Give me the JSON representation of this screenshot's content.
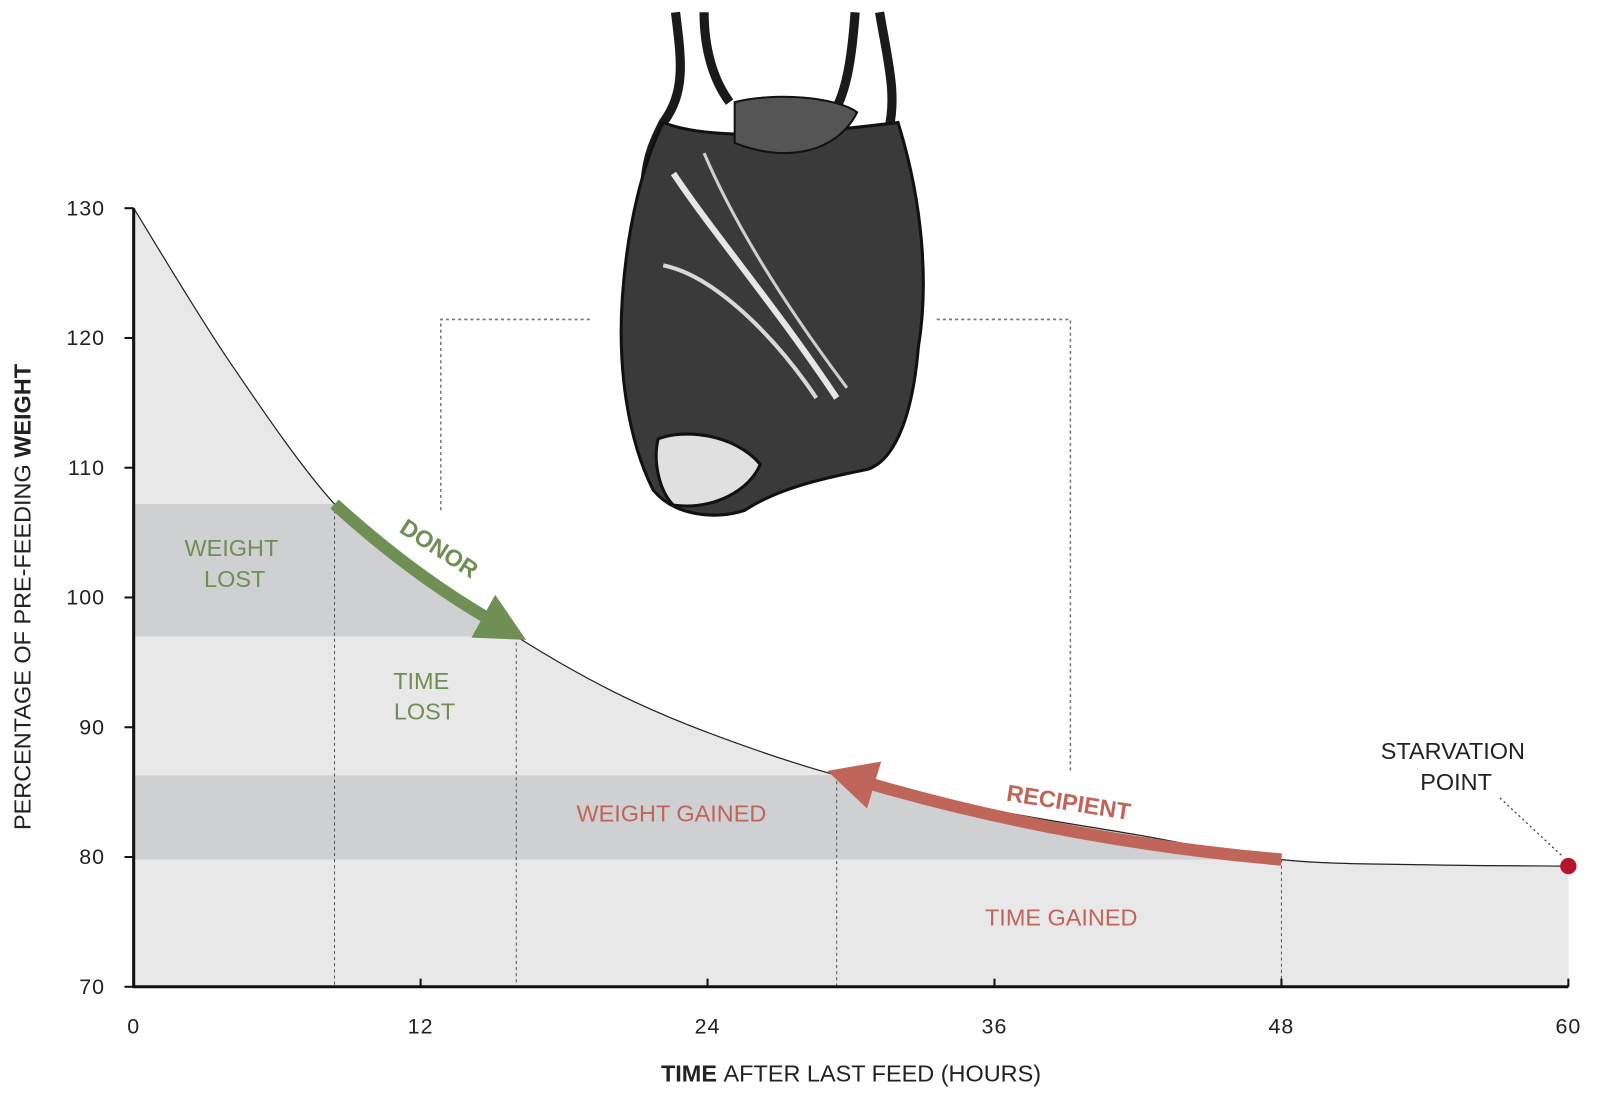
{
  "chart_data": {
    "type": "line",
    "x_label": {
      "emphasis": "TIME",
      "text": "AFTER LAST FEED (HOURS)"
    },
    "y_label": {
      "text": "PERCENTAGE OF PRE-FEEDING",
      "emphasis": "WEIGHT"
    },
    "x": [
      0,
      4,
      8.4,
      12,
      16,
      20,
      24,
      29.4,
      36,
      42,
      48,
      54,
      60
    ],
    "values": [
      130,
      118.2,
      107.2,
      102.1,
      97,
      92.8,
      89.6,
      86.3,
      83.6,
      81.7,
      79.8,
      79.4,
      79.3
    ],
    "color": "#222222",
    "xlim": [
      0,
      60
    ],
    "xticks": [
      0,
      12,
      24,
      36,
      48,
      60
    ],
    "ylim": [
      70,
      130
    ],
    "yticks": [
      70,
      80,
      90,
      100,
      110,
      120,
      130
    ],
    "donor": {
      "label": "DONOR",
      "color": "#6f8f55",
      "x": [
        8.4,
        16
      ],
      "y": [
        107.2,
        97
      ]
    },
    "recipient": {
      "label": "RECIPIENT",
      "color": "#c0655a",
      "x": [
        48,
        29.4
      ],
      "y": [
        79.8,
        86.3
      ]
    },
    "starvation": {
      "x": 60,
      "y": 79.3,
      "color": "#b5152b"
    },
    "annotations": {
      "weight_lost": [
        "WEIGHT",
        "LOST"
      ],
      "time_lost": [
        "TIME",
        "LOST"
      ],
      "weight_gained": "WEIGHT GAINED",
      "time_gained": "TIME GAINED",
      "starvation_point": [
        "STARVATION",
        "POINT"
      ]
    }
  }
}
